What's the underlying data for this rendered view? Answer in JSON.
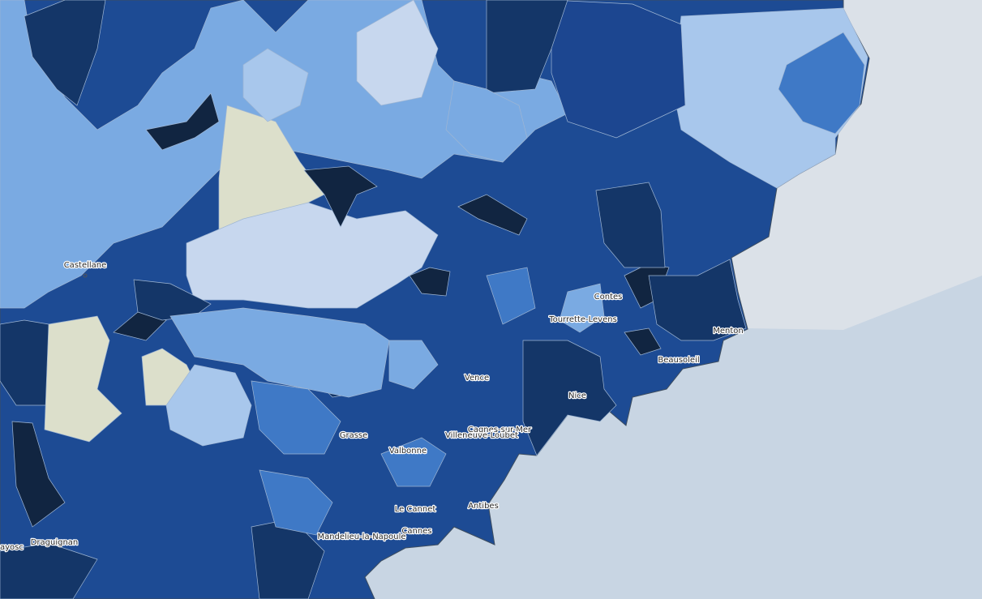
{
  "places": [
    "Castellane",
    "Contes",
    "Tourrette-Levens",
    "Menton",
    "Beausoleil",
    "Vence",
    "Nice",
    "Cagnes-sur-Mer",
    "Villeneuve-Loubet",
    "Grasse",
    "Valbonne",
    "Le Cannet",
    "Antibes",
    "Cannes",
    "Mandelieu-la-Napoule",
    "Draguignan",
    "ayosc"
  ]
}
